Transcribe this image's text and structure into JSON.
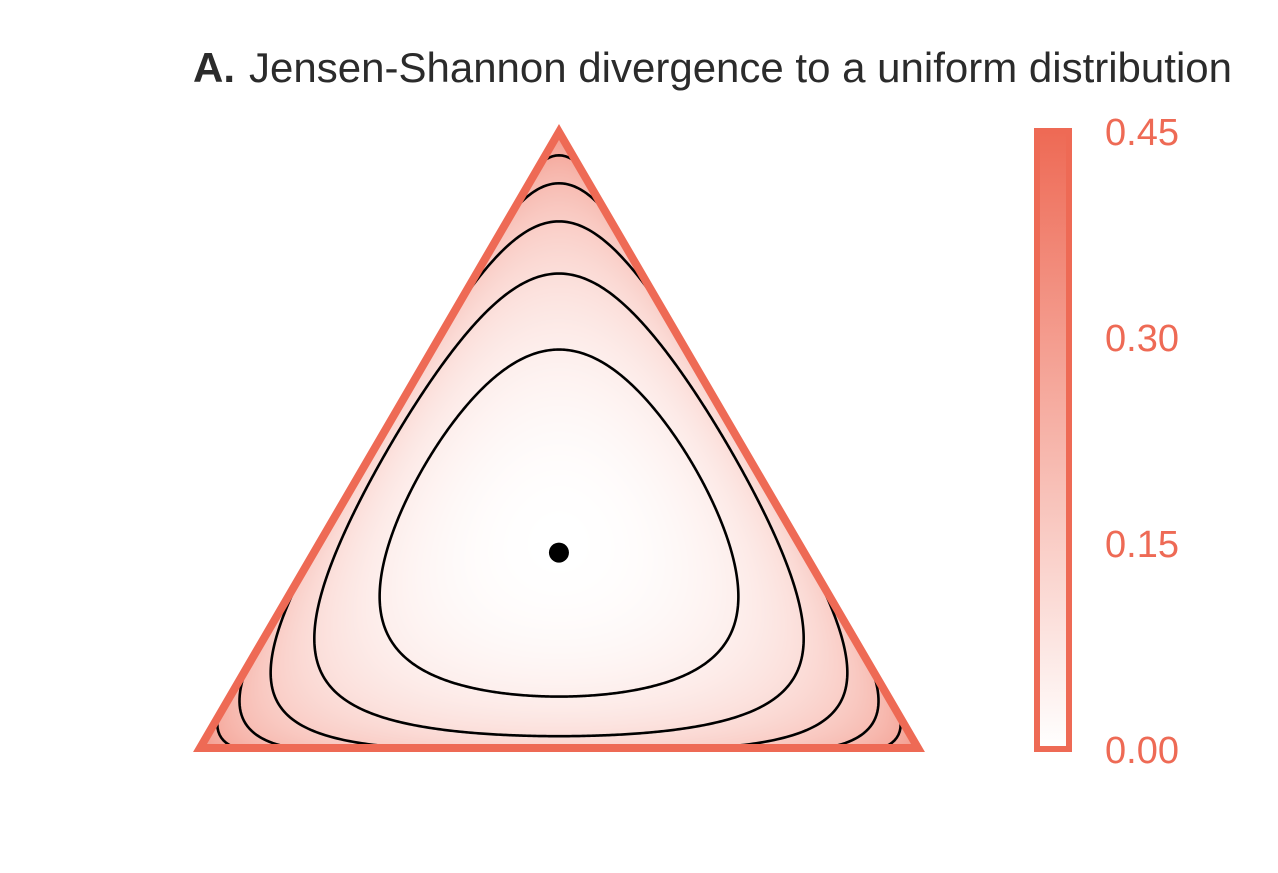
{
  "chart_data": {
    "type": "heatmap",
    "panel_label": "A.",
    "title": "Jensen-Shannon divergence to a uniform distribution",
    "simplex": {
      "reference_point": [
        0.3333,
        0.3333,
        0.3333
      ],
      "contour_levels": [
        0.05,
        0.1,
        0.15,
        0.2,
        0.25,
        0.3,
        0.35,
        0.4
      ]
    },
    "colorbar": {
      "min": 0.0,
      "max": 0.45,
      "ticks": [
        "0.00",
        "0.15",
        "0.30",
        "0.45"
      ]
    },
    "colors": {
      "accent": "#ee6a55",
      "low": "#ffffff",
      "high": "#ee6a55",
      "contour": "#000000",
      "title": "#2b2b2b"
    }
  }
}
